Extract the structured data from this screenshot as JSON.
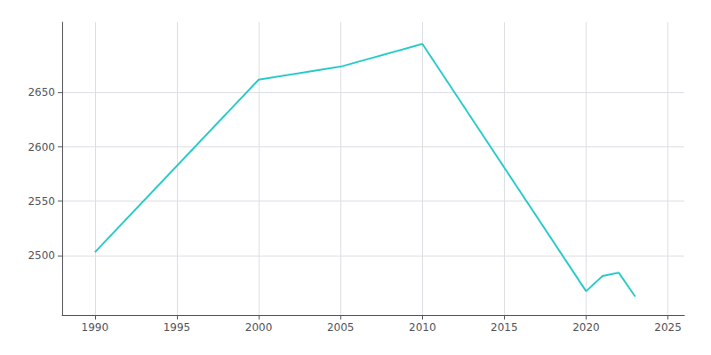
{
  "chart_data": {
    "type": "line",
    "x": [
      1990,
      2000,
      2005,
      2010,
      2020,
      2021,
      2022,
      2023
    ],
    "values": [
      2503,
      2662,
      2674,
      2695,
      2467,
      2481,
      2484,
      2462
    ],
    "color": "#28c9c9",
    "xlim": [
      1988,
      2026
    ],
    "ylim": [
      2445,
      2715
    ],
    "xticks": [
      1990,
      1995,
      2000,
      2005,
      2010,
      2015,
      2020,
      2025
    ],
    "yticks": [
      2500,
      2550,
      2600,
      2650
    ],
    "grid": true
  }
}
